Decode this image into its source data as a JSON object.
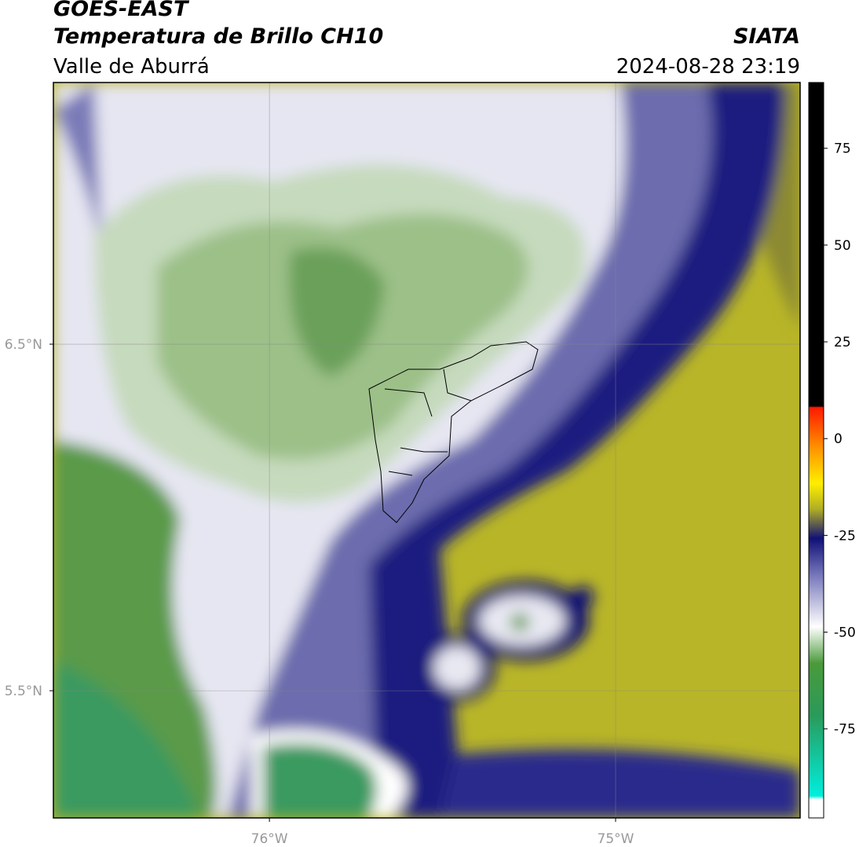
{
  "chart_data": {
    "type": "map",
    "title": "GOES-EAST",
    "subtitle": "Temperatura de Brillo CH10",
    "region": "Valle de Aburrá",
    "source": "SIATA",
    "timestamp": "2024-08-28 23:19",
    "xlim": [
      -76.624,
      -74.467
    ],
    "ylim": [
      5.133,
      7.255
    ],
    "xticks": [
      {
        "value": -76,
        "label": "76°W"
      },
      {
        "value": -75,
        "label": "75°W"
      }
    ],
    "yticks": [
      {
        "value": 6.5,
        "label": "6.5°N"
      },
      {
        "value": 5.5,
        "label": "5.5°N"
      }
    ],
    "grid": true,
    "colorbar": {
      "lim": [
        -98,
        92
      ],
      "ticks": [
        75,
        50,
        25,
        0,
        -25,
        -50,
        -75
      ]
    }
  }
}
